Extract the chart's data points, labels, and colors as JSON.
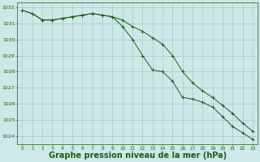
{
  "title": "Graphe pression niveau de la mer (hPa)",
  "background_color": "#cce8e8",
  "grid_color": "#a8c8c8",
  "line_color": "#1a5c1a",
  "x_values": [
    0,
    1,
    2,
    3,
    4,
    5,
    6,
    7,
    8,
    9,
    10,
    11,
    12,
    13,
    14,
    15,
    16,
    17,
    18,
    19,
    20,
    21,
    22,
    23
  ],
  "line1": [
    1031.8,
    1031.6,
    1031.2,
    1031.2,
    1031.3,
    1031.4,
    1031.5,
    1031.6,
    1031.5,
    1031.4,
    1031.2,
    1030.8,
    1030.5,
    1030.1,
    1029.7,
    1029.0,
    1028.0,
    1027.3,
    1026.8,
    1026.4,
    1025.9,
    1025.4,
    1024.8,
    1024.3
  ],
  "line2": [
    1031.8,
    1031.6,
    1031.2,
    1031.2,
    1031.3,
    1031.4,
    1031.5,
    1031.6,
    1031.5,
    1031.4,
    1030.8,
    1030.0,
    1029.0,
    1028.1,
    1028.0,
    1027.4,
    1026.4,
    1026.3,
    1026.1,
    1025.8,
    1025.2,
    1024.6,
    1024.2,
    1023.8
  ],
  "ylim": [
    1023.5,
    1032.3
  ],
  "yticks": [
    1024,
    1025,
    1026,
    1027,
    1028,
    1029,
    1030,
    1031,
    1032
  ],
  "title_color": "#1a5c1a",
  "title_fontsize": 7.0,
  "figsize": [
    3.2,
    2.0
  ],
  "dpi": 100
}
